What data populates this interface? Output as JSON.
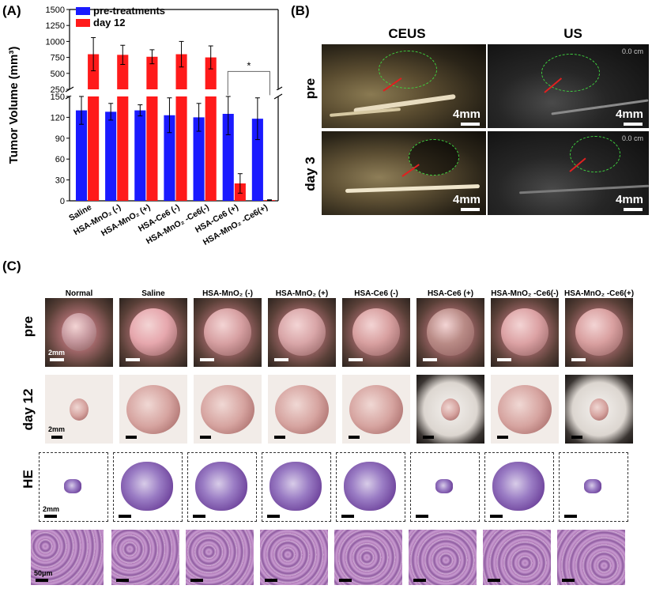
{
  "panels": {
    "a": "(A)",
    "b": "(B)",
    "c": "(C)"
  },
  "chart_data": {
    "type": "bar",
    "ylabel": "Tumor Volume (mm³)",
    "ylim": [
      0,
      1500
    ],
    "axis_break": [
      150,
      250
    ],
    "yticks_lower": [
      0,
      30,
      60,
      90,
      120,
      150
    ],
    "yticks_upper": [
      250,
      500,
      750,
      1000,
      1250,
      1500
    ],
    "categories": [
      "Saline",
      "HSA-MnO₂ (-)",
      "HSA-MnO₂ (+)",
      "HSA-Ce6 (-)",
      "HSA-MnO₂ -Ce6(-)",
      "HSA-Ce6 (+)",
      "HSA-MnO₂ -Ce6(+)"
    ],
    "series": [
      {
        "name": "pre-treatments",
        "color": "#1a1aff",
        "values": [
          130,
          128,
          130,
          123,
          120,
          125,
          118
        ],
        "errors": [
          20,
          12,
          8,
          25,
          20,
          30,
          30
        ]
      },
      {
        "name": "day 12",
        "color": "#ff1a1a",
        "values": [
          800,
          790,
          760,
          800,
          750,
          25,
          1
        ],
        "errors": [
          260,
          150,
          110,
          200,
          180,
          14,
          0.5
        ]
      }
    ],
    "significance": "*",
    "legend": "top-left"
  },
  "panelB": {
    "columns": [
      "CEUS",
      "US"
    ],
    "rows": [
      "pre",
      "day 3"
    ],
    "scale": "4mm",
    "depth_label": "0.0 cm"
  },
  "panelC": {
    "groups": [
      "Normal",
      "Saline",
      "HSA-MnO₂ (-)",
      "HSA-MnO₂ (+)",
      "HSA-Ce6 (-)",
      "HSA-Ce6 (+)",
      "HSA-MnO₂ -Ce6(-)",
      "HSA-MnO₂ -Ce6(+)"
    ],
    "rows": [
      "pre",
      "day 12",
      "HE"
    ],
    "scale_photo": "2mm",
    "scale_he": "2mm",
    "scale_histo": "50μm"
  }
}
